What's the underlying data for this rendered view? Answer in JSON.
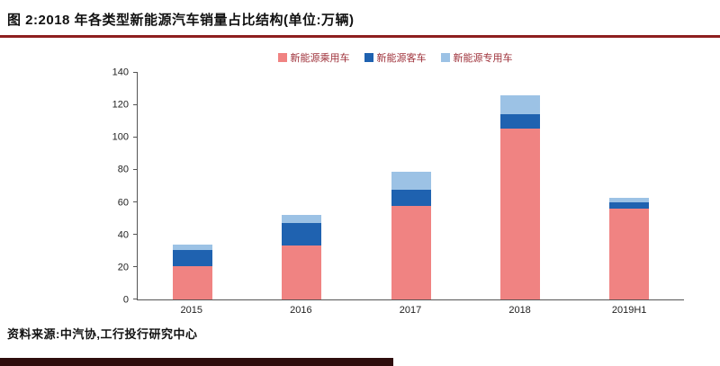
{
  "header": {
    "title": "图 2:2018 年各类型新能源汽车销量占比结构(单位:万辆)"
  },
  "footer": {
    "source": "资料来源:中汽协,工行投行研究中心"
  },
  "colors": {
    "header_rule": "#8E1F1F",
    "footer_bar": "#2E0D0D",
    "legend_text": "#9E3039",
    "axis": "#555555"
  },
  "chart_data": {
    "type": "bar",
    "stacked": true,
    "title": "2018 年各类型新能源汽车销量占比结构(单位:万辆)",
    "xlabel": "",
    "ylabel": "",
    "categories": [
      "2015",
      "2016",
      "2017",
      "2018",
      "2019H1"
    ],
    "series": [
      {
        "name": "新能源乘用车",
        "color": "#F08382",
        "values": [
          20.5,
          33.5,
          58,
          105.5,
          56
        ]
      },
      {
        "name": "新能源客车",
        "color": "#1F62B0",
        "values": [
          10,
          13.5,
          10,
          9,
          4
        ]
      },
      {
        "name": "新能源专用车",
        "color": "#9CC2E5",
        "values": [
          3.5,
          5,
          11,
          11.5,
          3
        ]
      }
    ],
    "ylim": [
      0,
      140
    ],
    "ytick_step": 20,
    "legend_position": "top",
    "grid": false
  }
}
